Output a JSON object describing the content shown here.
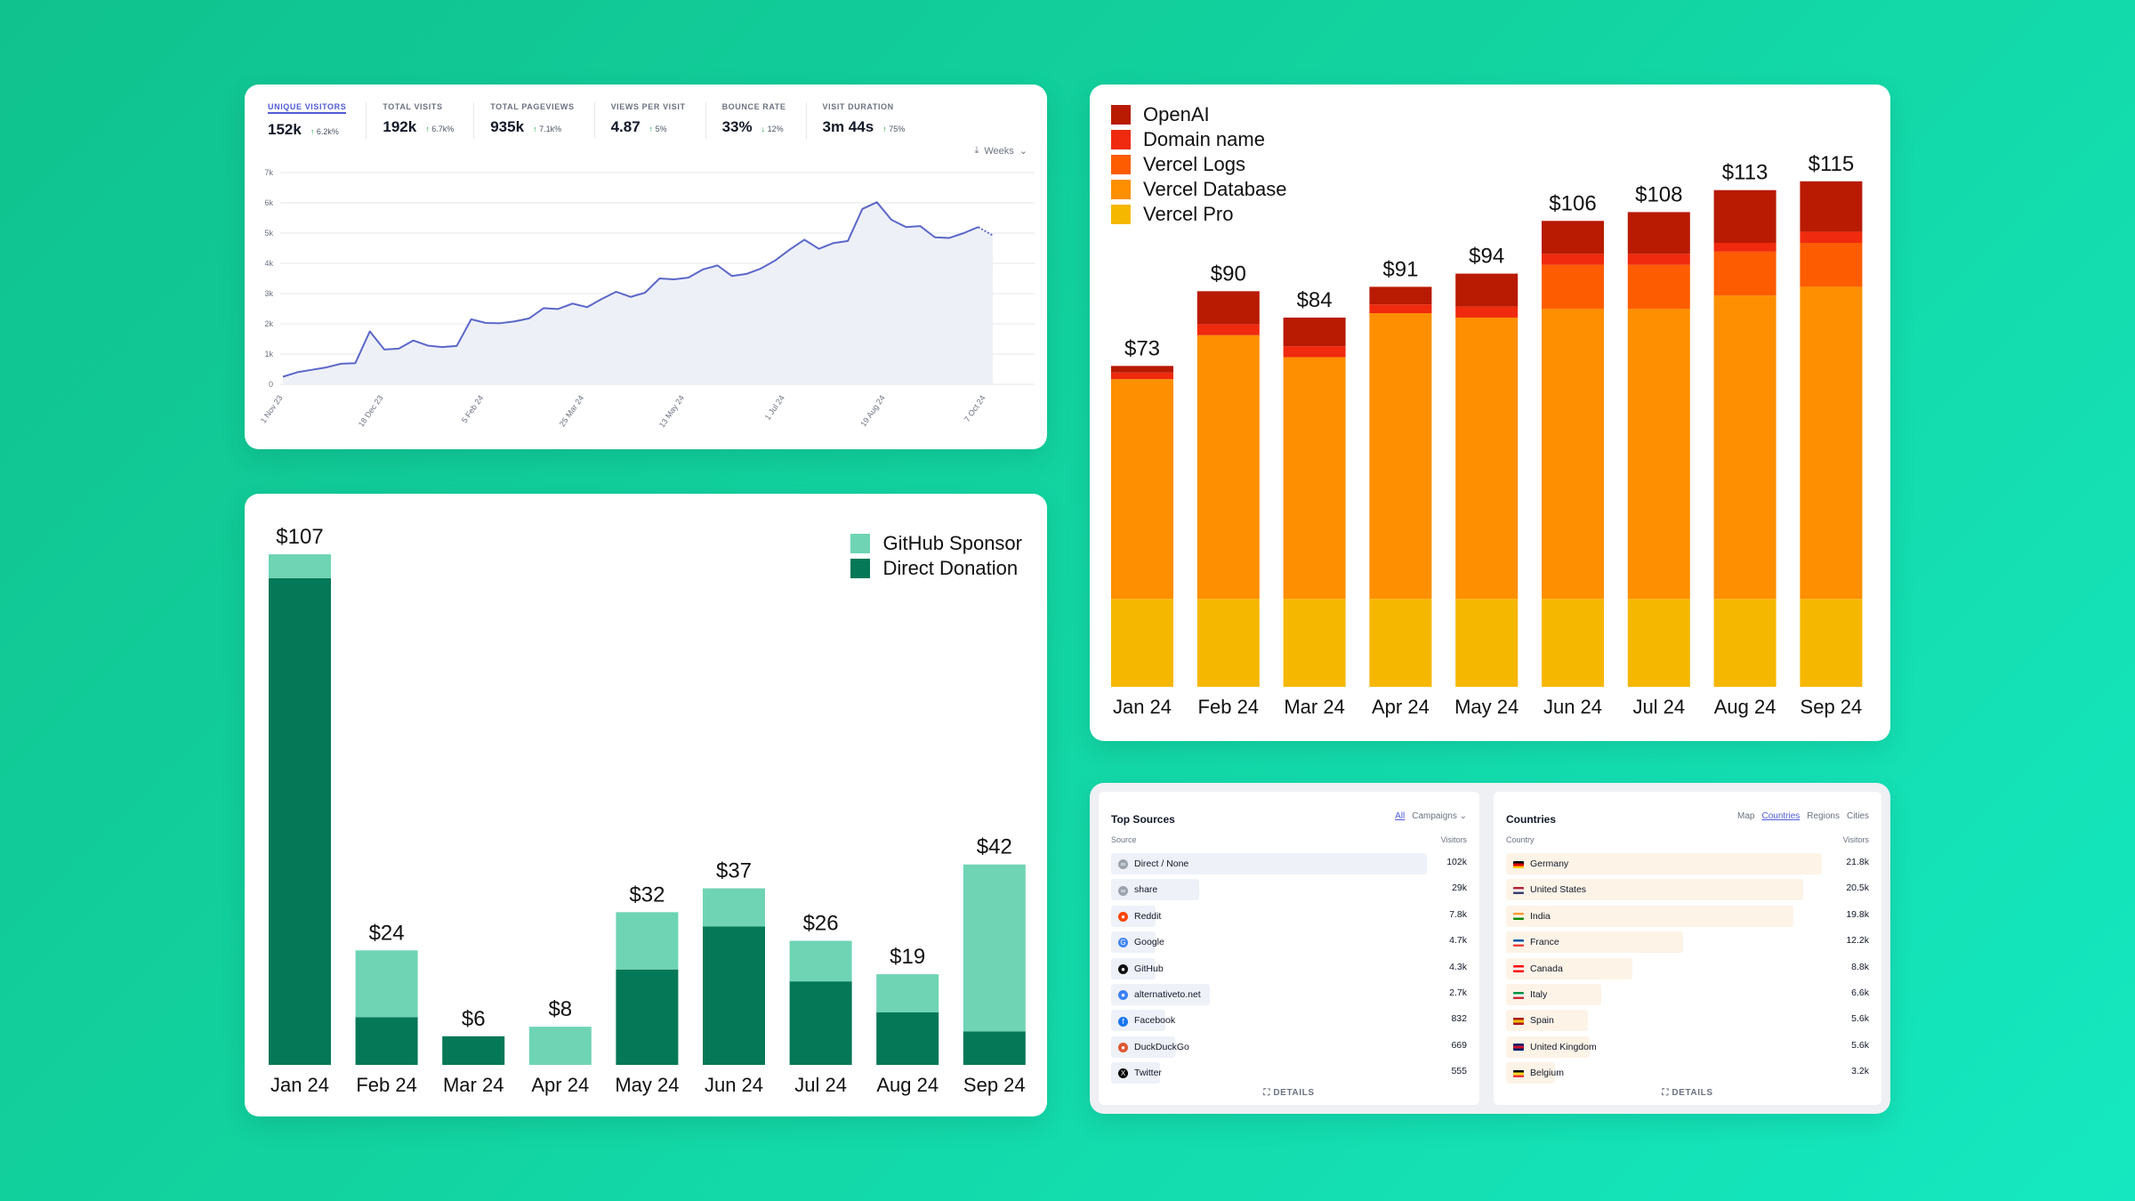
{
  "analytics": {
    "kpis": [
      {
        "label": "UNIQUE VISITORS",
        "value": "152k",
        "delta": "6.2k%",
        "dir": "up"
      },
      {
        "label": "TOTAL VISITS",
        "value": "192k",
        "delta": "6.7k%",
        "dir": "up"
      },
      {
        "label": "TOTAL PAGEVIEWS",
        "value": "935k",
        "delta": "7.1k%",
        "dir": "up"
      },
      {
        "label": "VIEWS PER VISIT",
        "value": "4.87",
        "delta": "5%",
        "dir": "up"
      },
      {
        "label": "BOUNCE RATE",
        "value": "33%",
        "delta": "12%",
        "dir": "down"
      },
      {
        "label": "VISIT DURATION",
        "value": "3m 44s",
        "delta": "75%",
        "dir": "up"
      }
    ],
    "interval_label": "Weeks",
    "colors": {
      "line": "#5b67c9",
      "fill": "#eef0f8",
      "active": "#4f5bd5"
    }
  },
  "chart_data": [
    {
      "type": "line",
      "y_ticks": [
        "7k",
        "6k",
        "5k",
        "4k",
        "3k",
        "2k",
        "1k",
        "0"
      ],
      "x_ticks": [
        "1 Nov 23",
        "18 Dec 23",
        "5 Feb 24",
        "25 Mar 24",
        "13 May 24",
        "1 Jul 24",
        "19 Aug 24",
        "7 Oct 24"
      ],
      "ylim": [
        0,
        7000
      ],
      "values": [
        250,
        400,
        480,
        560,
        680,
        700,
        1750,
        1150,
        1180,
        1450,
        1280,
        1230,
        1270,
        2150,
        2030,
        2020,
        2080,
        2180,
        2520,
        2490,
        2670,
        2550,
        2820,
        3060,
        2890,
        3030,
        3500,
        3470,
        3530,
        3800,
        3930,
        3580,
        3650,
        3830,
        4100,
        4460,
        4780,
        4480,
        4670,
        4740,
        5800,
        6020,
        5440,
        5200,
        5230,
        4860,
        4840,
        5000,
        5200,
        4920
      ],
      "projected_last": true,
      "grid": true
    },
    {
      "type": "bar",
      "stacked": true,
      "categories": [
        "Jan 24",
        "Feb 24",
        "Mar 24",
        "Apr 24",
        "May 24",
        "Jun 24",
        "Jul 24",
        "Aug 24",
        "Sep 24"
      ],
      "totals": [
        "$107",
        "$24",
        "$6",
        "$8",
        "$32",
        "$37",
        "$26",
        "$19",
        "$42"
      ],
      "series": [
        {
          "name": "Direct Donation",
          "color": "#047857",
          "values": [
            102,
            10,
            6,
            0,
            20,
            29,
            17.5,
            11,
            7
          ]
        },
        {
          "name": "GitHub Sponsor",
          "color": "#6ed4b4",
          "values": [
            5,
            14,
            0,
            8,
            12,
            8,
            8.5,
            8,
            35
          ]
        }
      ],
      "ylim": [
        0,
        110
      ],
      "legend": "top-right"
    },
    {
      "type": "bar",
      "stacked": true,
      "categories": [
        "Jan 24",
        "Feb 24",
        "Mar 24",
        "Apr 24",
        "May 24",
        "Jun 24",
        "Jul 24",
        "Aug 24",
        "Sep 24"
      ],
      "totals": [
        "$73",
        "$90",
        "$84",
        "$91",
        "$94",
        "$106",
        "$108",
        "$113",
        "$115"
      ],
      "series": [
        {
          "name": "Vercel Pro",
          "color": "#f6b700",
          "values": [
            20,
            20,
            20,
            20,
            20,
            20,
            20,
            20,
            20
          ]
        },
        {
          "name": "Vercel Database",
          "color": "#fd8f00",
          "values": [
            50,
            60,
            55,
            65,
            64,
            66,
            66,
            69,
            71
          ]
        },
        {
          "name": "Vercel Logs",
          "color": "#fe5c00",
          "values": [
            0,
            0,
            0,
            0,
            0,
            10,
            10,
            10,
            10
          ]
        },
        {
          "name": "Domain name",
          "color": "#ef2a0e",
          "values": [
            1.5,
            2.5,
            2.5,
            2,
            2.5,
            2.5,
            2.5,
            2,
            2.5
          ]
        },
        {
          "name": "OpenAI",
          "color": "#b81a02",
          "values": [
            1.5,
            7.5,
            6.5,
            4,
            7.5,
            7.5,
            9.5,
            12,
            11.5
          ]
        }
      ],
      "ylim": [
        0,
        118
      ],
      "legend": "top-left"
    }
  ],
  "sources": {
    "title": "Top Sources",
    "tabs": [
      {
        "label": "All",
        "on": true
      },
      {
        "label": "Campaigns ⌄",
        "on": false
      }
    ],
    "col_left": "Source",
    "col_right": "Visitors",
    "bar_color": "#eef1f8",
    "rows": [
      {
        "name": "Direct / None",
        "value": "102k",
        "frac": 1.0,
        "icon": "link-icon",
        "glyph": "∞",
        "color": "#9ca3af"
      },
      {
        "name": "share",
        "value": "29k",
        "frac": 0.28,
        "icon": "link-icon",
        "glyph": "∞",
        "color": "#9ca3af"
      },
      {
        "name": "Reddit",
        "value": "7.8k",
        "frac": 0.08,
        "icon": "reddit-icon",
        "glyph": "●",
        "color": "#ff4500"
      },
      {
        "name": "Google",
        "value": "4.7k",
        "frac": 0.05,
        "icon": "google-icon",
        "glyph": "G",
        "color": "#4285f4"
      },
      {
        "name": "GitHub",
        "value": "4.3k",
        "frac": 0.04,
        "icon": "github-icon",
        "glyph": "●",
        "color": "#111111"
      },
      {
        "name": "alternativeto.net",
        "value": "2.7k",
        "frac": 0.03,
        "icon": "alternativeto-icon",
        "glyph": "●",
        "color": "#3b82f6"
      },
      {
        "name": "Facebook",
        "value": "832",
        "frac": 0.01,
        "icon": "facebook-icon",
        "glyph": "f",
        "color": "#1877f2"
      },
      {
        "name": "DuckDuckGo",
        "value": "669",
        "frac": 0.01,
        "icon": "duckduckgo-icon",
        "glyph": "●",
        "color": "#de5833"
      },
      {
        "name": "Twitter",
        "value": "555",
        "frac": 0.01,
        "icon": "x-icon",
        "glyph": "X",
        "color": "#000000"
      }
    ],
    "details_label": "DETAILS"
  },
  "countries": {
    "title": "Countries",
    "tabs": [
      {
        "label": "Map",
        "on": false
      },
      {
        "label": "Countries",
        "on": true
      },
      {
        "label": "Regions",
        "on": false
      },
      {
        "label": "Cities",
        "on": false
      }
    ],
    "col_left": "Country",
    "col_right": "Visitors",
    "bar_color": "#fdf3e7",
    "rows": [
      {
        "name": "Germany",
        "value": "21.8k",
        "frac": 1.0,
        "icon": "germany-flag-icon",
        "flag": [
          "#000000",
          "#dd0000",
          "#ffce00"
        ]
      },
      {
        "name": "United States",
        "value": "20.5k",
        "frac": 0.94,
        "icon": "usa-flag-icon",
        "flag": [
          "#b22234",
          "#ffffff",
          "#3c3b6e"
        ]
      },
      {
        "name": "India",
        "value": "19.8k",
        "frac": 0.91,
        "icon": "india-flag-icon",
        "flag": [
          "#ff9933",
          "#ffffff",
          "#138808"
        ]
      },
      {
        "name": "France",
        "value": "12.2k",
        "frac": 0.56,
        "icon": "france-flag-icon",
        "flag": [
          "#0055a4",
          "#ffffff",
          "#ef4135"
        ]
      },
      {
        "name": "Canada",
        "value": "8.8k",
        "frac": 0.4,
        "icon": "canada-flag-icon",
        "flag": [
          "#ff0000",
          "#ffffff",
          "#ff0000"
        ]
      },
      {
        "name": "Italy",
        "value": "6.6k",
        "frac": 0.3,
        "icon": "italy-flag-icon",
        "flag": [
          "#009246",
          "#ffffff",
          "#ce2b37"
        ]
      },
      {
        "name": "Spain",
        "value": "5.6k",
        "frac": 0.26,
        "icon": "spain-flag-icon",
        "flag": [
          "#aa151b",
          "#f1bf00",
          "#aa151b"
        ]
      },
      {
        "name": "United Kingdom",
        "value": "5.6k",
        "frac": 0.26,
        "icon": "uk-flag-icon",
        "flag": [
          "#012169",
          "#c8102e",
          "#012169"
        ]
      },
      {
        "name": "Belgium",
        "value": "3.2k",
        "frac": 0.15,
        "icon": "belgium-flag-icon",
        "flag": [
          "#000000",
          "#fdda24",
          "#ef3340"
        ]
      }
    ],
    "details_label": "DETAILS"
  }
}
